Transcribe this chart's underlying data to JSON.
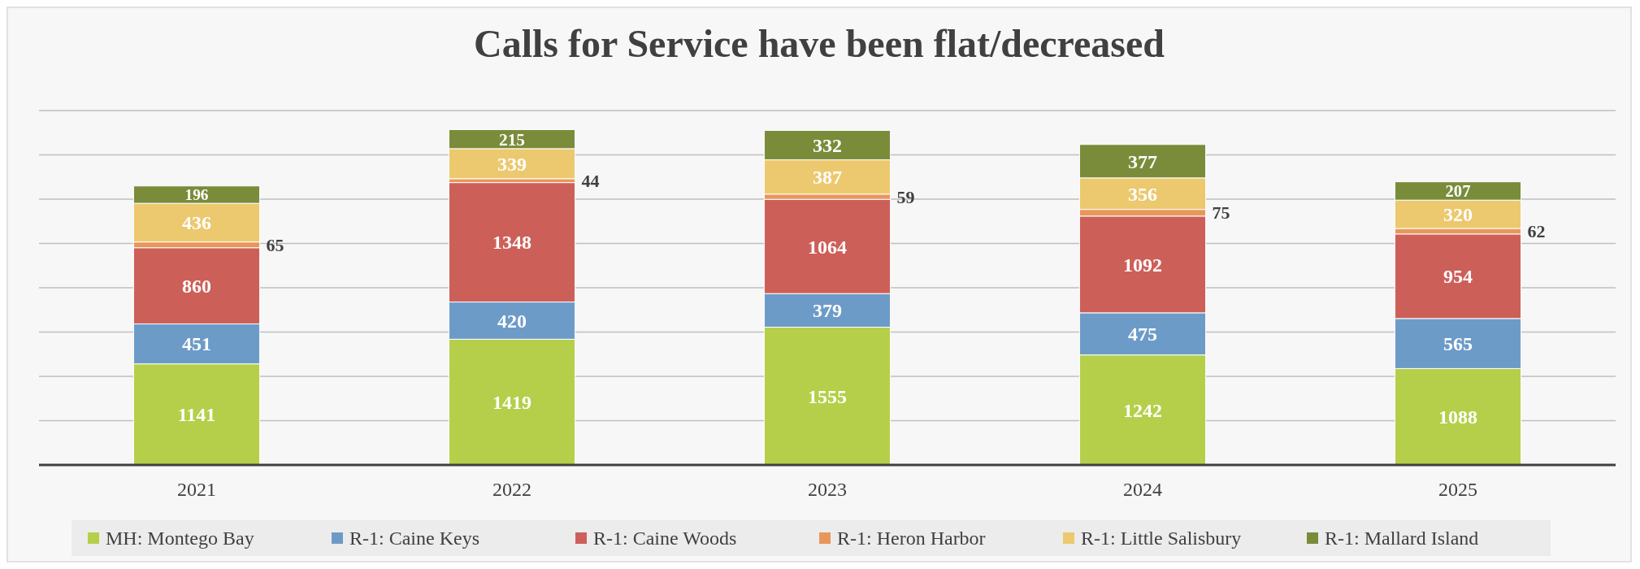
{
  "chart_data": {
    "type": "bar",
    "title": "Calls for Service have been flat/decreased",
    "categories": [
      "2021",
      "2022",
      "2023",
      "2024",
      "2025"
    ],
    "stacked": true,
    "data_labels": true,
    "grid": "y",
    "legend": "bottom",
    "ylim": [
      0,
      4000
    ],
    "yticks": [
      {
        "value": 0,
        "label": null
      },
      {
        "value": 500,
        "label": null
      },
      {
        "value": 1000,
        "label": null
      },
      {
        "value": 1500,
        "label": null
      },
      {
        "value": 2000,
        "label": null
      },
      {
        "value": 2500,
        "label": null
      },
      {
        "value": 3000,
        "label": null
      },
      {
        "value": 3500,
        "label": null
      },
      {
        "value": 4000,
        "label": null
      }
    ],
    "tick_labels": "x",
    "series": [
      {
        "name": "MH: Montego Bay",
        "color": "#b5cf4a",
        "values": [
          1141,
          1419,
          1555,
          1242,
          1088
        ]
      },
      {
        "name": "R-1: Caine Keys",
        "color": "#6d9bc8",
        "values": [
          451,
          420,
          379,
          475,
          565
        ]
      },
      {
        "name": "R-1: Caine Woods",
        "color": "#cd5f59",
        "values": [
          860,
          1348,
          1064,
          1092,
          954
        ]
      },
      {
        "name": "R-1: Heron Harbor",
        "color": "#e9965b",
        "values": [
          65,
          44,
          59,
          75,
          62
        ]
      },
      {
        "name": "R-1: Little Salisbury",
        "color": "#ecc86e",
        "values": [
          436,
          339,
          387,
          356,
          320
        ]
      },
      {
        "name": "R-1: Mallard Island",
        "color": "#7a8c3a",
        "values": [
          196,
          215,
          332,
          377,
          207
        ]
      }
    ]
  }
}
